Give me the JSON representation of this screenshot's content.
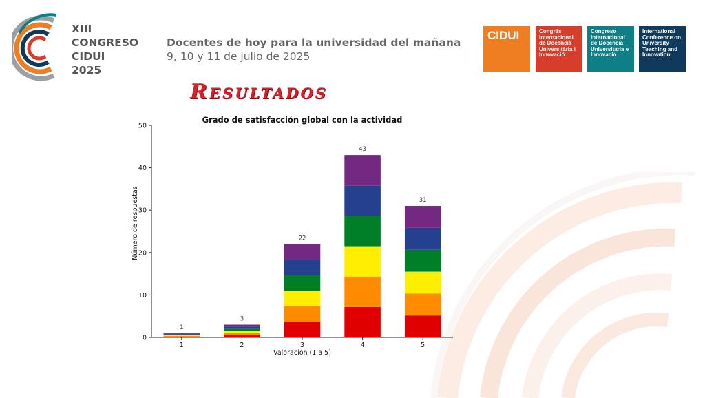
{
  "header": {
    "congreso_lines": [
      "XIII",
      "CONGRESO",
      "CIDUI",
      "2025"
    ],
    "tagline": "Docentes de hoy para la universidad del mañana",
    "dates": "9, 10 y 11 de julio de 2025"
  },
  "badges": [
    {
      "text": "CIDUI",
      "color": "#ef7d22"
    },
    {
      "text": "Congrés Internacional de Docència Universitària i Innovació",
      "color": "#d63d2a"
    },
    {
      "text": "Congreso Internacional de Docencia Universitaria e Innovació",
      "color": "#0e7f86"
    },
    {
      "text": "International Conference on University Teaching and Innovation",
      "color": "#0f3a5c"
    }
  ],
  "section_title": "Resultados",
  "chart_data": {
    "type": "bar",
    "stacked": true,
    "title": "Grado de satisfacción global con la actividad",
    "xlabel": "Valoración (1 a 5)",
    "ylabel": "Número de respuestas",
    "categories": [
      "1",
      "2",
      "3",
      "4",
      "5"
    ],
    "totals": [
      1,
      3,
      22,
      43,
      31
    ],
    "ylim": [
      0,
      50
    ],
    "yticks": [
      0,
      10,
      20,
      30,
      40,
      50
    ],
    "segment_colors": [
      "#e00000",
      "#ff8c00",
      "#ffee00",
      "#008026",
      "#24408e",
      "#732982"
    ],
    "grid": false
  }
}
